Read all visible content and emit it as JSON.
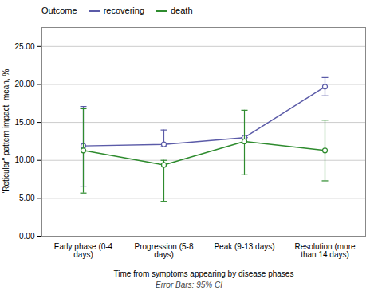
{
  "chart_data": {
    "type": "line",
    "xlabel": "Time from symptoms appearing by disease phases",
    "ylabel": "\"Reticular\" pattern impact, mean, %",
    "footnote": "Error Bars: 95% CI",
    "legend_title": "Outcome",
    "categories": [
      "Early phase (0-4\ndays)",
      "Progression (5-8\ndays)",
      "Peak (9-13 days)",
      "Resolution (more\nthan 14 days)"
    ],
    "series": [
      {
        "name": "recovering",
        "color": "#5b5ba8",
        "marker": "circle",
        "line_style": "solid",
        "values": [
          11.9,
          12.1,
          13.0,
          19.7
        ],
        "ci_lower": [
          6.6,
          11.8,
          13.0,
          18.5
        ],
        "ci_upper": [
          17.1,
          14.0,
          13.0,
          20.9
        ]
      },
      {
        "name": "death",
        "color": "#2e8b2e",
        "marker": "circle",
        "line_style": "solid",
        "values": [
          11.3,
          9.4,
          12.5,
          11.3
        ],
        "ci_lower": [
          5.7,
          4.6,
          8.1,
          7.3
        ],
        "ci_upper": [
          16.8,
          10.0,
          16.6,
          15.3
        ]
      }
    ],
    "ylim": [
      0.0,
      27.5
    ],
    "yticks": [
      {
        "value": 0.0,
        "label": "0.00"
      },
      {
        "value": 5.0,
        "label": "5.00"
      },
      {
        "value": 10.0,
        "label": "10.00"
      },
      {
        "value": 15.0,
        "label": "15.00"
      },
      {
        "value": 20.0,
        "label": "20.00"
      },
      {
        "value": 25.0,
        "label": "25.00"
      }
    ],
    "grid": true,
    "legend": "top"
  }
}
